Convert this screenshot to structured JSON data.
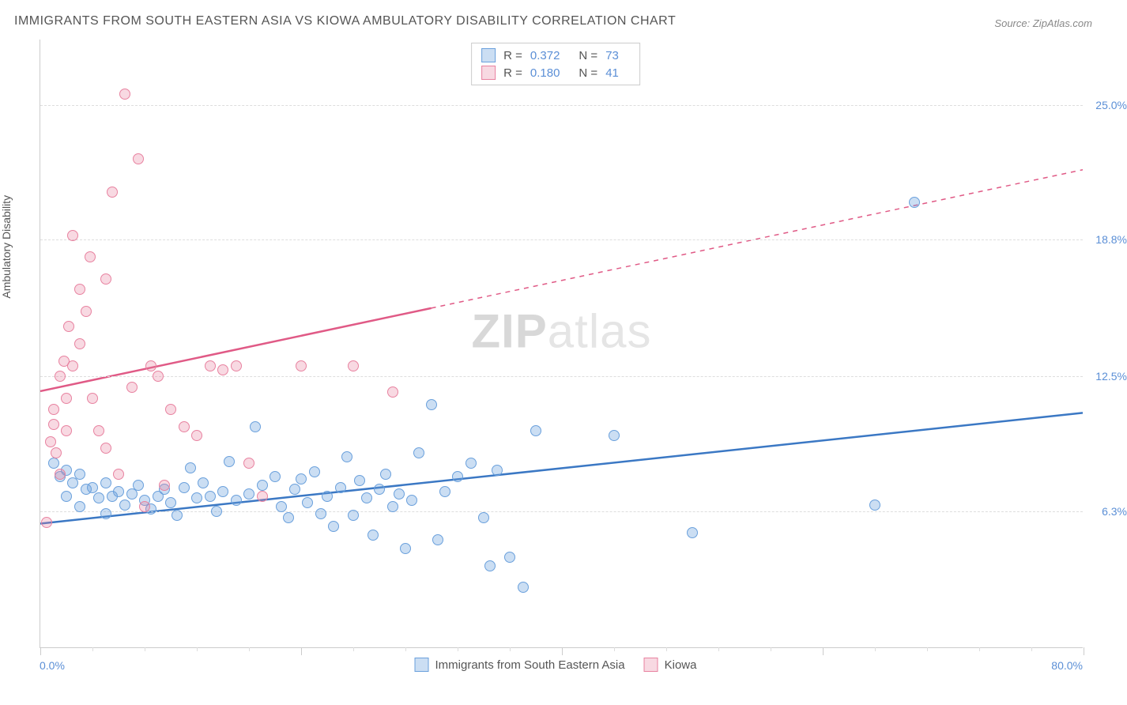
{
  "title": "IMMIGRANTS FROM SOUTH EASTERN ASIA VS KIOWA AMBULATORY DISABILITY CORRELATION CHART",
  "source_label": "Source:",
  "source_name": "ZipAtlas.com",
  "watermark": {
    "bold": "ZIP",
    "rest": "atlas"
  },
  "yaxis_title": "Ambulatory Disability",
  "chart": {
    "type": "scatter",
    "xlim": [
      0,
      80
    ],
    "ylim": [
      0,
      28
    ],
    "x_tick_label_left": "0.0%",
    "x_tick_label_right": "80.0%",
    "x_major_ticks": [
      0,
      20,
      40,
      60,
      80
    ],
    "x_minor_ticks": [
      4,
      8,
      12,
      16,
      24,
      28,
      32,
      36,
      44,
      48,
      52,
      56,
      64,
      68,
      72,
      76
    ],
    "y_gridlines": [
      6.3,
      12.5,
      18.8,
      25.0
    ],
    "y_tick_labels": [
      "6.3%",
      "12.5%",
      "18.8%",
      "25.0%"
    ],
    "grid_color": "#dddddd",
    "axis_color": "#cccccc",
    "background": "#ffffff"
  },
  "series": [
    {
      "name": "Immigrants from South Eastern Asia",
      "color_fill": "rgba(106,160,220,0.35)",
      "color_stroke": "#6aa0dc",
      "trend_color": "#3b78c4",
      "r_label": "R =",
      "r_value": "0.372",
      "n_label": "N =",
      "n_value": "73",
      "trend": {
        "x1": 0,
        "y1": 5.7,
        "x2": 80,
        "y2": 10.8,
        "solid_until_x": 80
      },
      "points": [
        [
          1,
          8.5
        ],
        [
          1.5,
          7.9
        ],
        [
          2,
          8.2
        ],
        [
          2,
          7.0
        ],
        [
          2.5,
          7.6
        ],
        [
          3,
          8.0
        ],
        [
          3,
          6.5
        ],
        [
          3.5,
          7.3
        ],
        [
          4,
          7.4
        ],
        [
          4.5,
          6.9
        ],
        [
          5,
          7.6
        ],
        [
          5,
          6.2
        ],
        [
          5.5,
          7.0
        ],
        [
          6,
          7.2
        ],
        [
          6.5,
          6.6
        ],
        [
          7,
          7.1
        ],
        [
          7.5,
          7.5
        ],
        [
          8,
          6.8
        ],
        [
          8.5,
          6.4
        ],
        [
          9,
          7.0
        ],
        [
          9.5,
          7.3
        ],
        [
          10,
          6.7
        ],
        [
          10.5,
          6.1
        ],
        [
          11,
          7.4
        ],
        [
          11.5,
          8.3
        ],
        [
          12,
          6.9
        ],
        [
          12.5,
          7.6
        ],
        [
          13,
          7.0
        ],
        [
          13.5,
          6.3
        ],
        [
          14,
          7.2
        ],
        [
          14.5,
          8.6
        ],
        [
          15,
          6.8
        ],
        [
          16,
          7.1
        ],
        [
          16.5,
          10.2
        ],
        [
          17,
          7.5
        ],
        [
          18,
          7.9
        ],
        [
          18.5,
          6.5
        ],
        [
          19,
          6.0
        ],
        [
          19.5,
          7.3
        ],
        [
          20,
          7.8
        ],
        [
          20.5,
          6.7
        ],
        [
          21,
          8.1
        ],
        [
          21.5,
          6.2
        ],
        [
          22,
          7.0
        ],
        [
          22.5,
          5.6
        ],
        [
          23,
          7.4
        ],
        [
          23.5,
          8.8
        ],
        [
          24,
          6.1
        ],
        [
          24.5,
          7.7
        ],
        [
          25,
          6.9
        ],
        [
          25.5,
          5.2
        ],
        [
          26,
          7.3
        ],
        [
          26.5,
          8.0
        ],
        [
          27,
          6.5
        ],
        [
          27.5,
          7.1
        ],
        [
          28,
          4.6
        ],
        [
          28.5,
          6.8
        ],
        [
          29,
          9.0
        ],
        [
          30,
          11.2
        ],
        [
          30.5,
          5.0
        ],
        [
          31,
          7.2
        ],
        [
          32,
          7.9
        ],
        [
          33,
          8.5
        ],
        [
          34,
          6.0
        ],
        [
          34.5,
          3.8
        ],
        [
          35,
          8.2
        ],
        [
          36,
          4.2
        ],
        [
          37,
          2.8
        ],
        [
          38,
          10.0
        ],
        [
          44,
          9.8
        ],
        [
          50,
          5.3
        ],
        [
          64,
          6.6
        ],
        [
          67,
          20.5
        ]
      ]
    },
    {
      "name": "Kiowa",
      "color_fill": "rgba(232,130,160,0.30)",
      "color_stroke": "#e882a0",
      "trend_color": "#e05a86",
      "r_label": "R =",
      "r_value": "0.180",
      "n_label": "N =",
      "n_value": "41",
      "trend": {
        "x1": 0,
        "y1": 11.8,
        "x2": 80,
        "y2": 22.0,
        "solid_until_x": 30
      },
      "points": [
        [
          0.5,
          5.8
        ],
        [
          0.8,
          9.5
        ],
        [
          1,
          10.3
        ],
        [
          1,
          11.0
        ],
        [
          1.2,
          9.0
        ],
        [
          1.5,
          12.5
        ],
        [
          1.5,
          8.0
        ],
        [
          1.8,
          13.2
        ],
        [
          2,
          11.5
        ],
        [
          2,
          10.0
        ],
        [
          2.2,
          14.8
        ],
        [
          2.5,
          13.0
        ],
        [
          2.5,
          19.0
        ],
        [
          3,
          14.0
        ],
        [
          3,
          16.5
        ],
        [
          3.5,
          15.5
        ],
        [
          3.8,
          18.0
        ],
        [
          4,
          11.5
        ],
        [
          4.5,
          10.0
        ],
        [
          5,
          9.2
        ],
        [
          5,
          17.0
        ],
        [
          5.5,
          21.0
        ],
        [
          6,
          8.0
        ],
        [
          6.5,
          25.5
        ],
        [
          7,
          12.0
        ],
        [
          7.5,
          22.5
        ],
        [
          8,
          6.5
        ],
        [
          8.5,
          13.0
        ],
        [
          9,
          12.5
        ],
        [
          9.5,
          7.5
        ],
        [
          10,
          11.0
        ],
        [
          11,
          10.2
        ],
        [
          12,
          9.8
        ],
        [
          13,
          13.0
        ],
        [
          14,
          12.8
        ],
        [
          15,
          13.0
        ],
        [
          16,
          8.5
        ],
        [
          17,
          7.0
        ],
        [
          20,
          13.0
        ],
        [
          24,
          13.0
        ],
        [
          27,
          11.8
        ]
      ]
    }
  ],
  "legend_bottom": [
    {
      "label": "Immigrants from South Eastern Asia",
      "fill": "rgba(106,160,220,0.35)",
      "stroke": "#6aa0dc"
    },
    {
      "label": "Kiowa",
      "fill": "rgba(232,130,160,0.30)",
      "stroke": "#e882a0"
    }
  ]
}
